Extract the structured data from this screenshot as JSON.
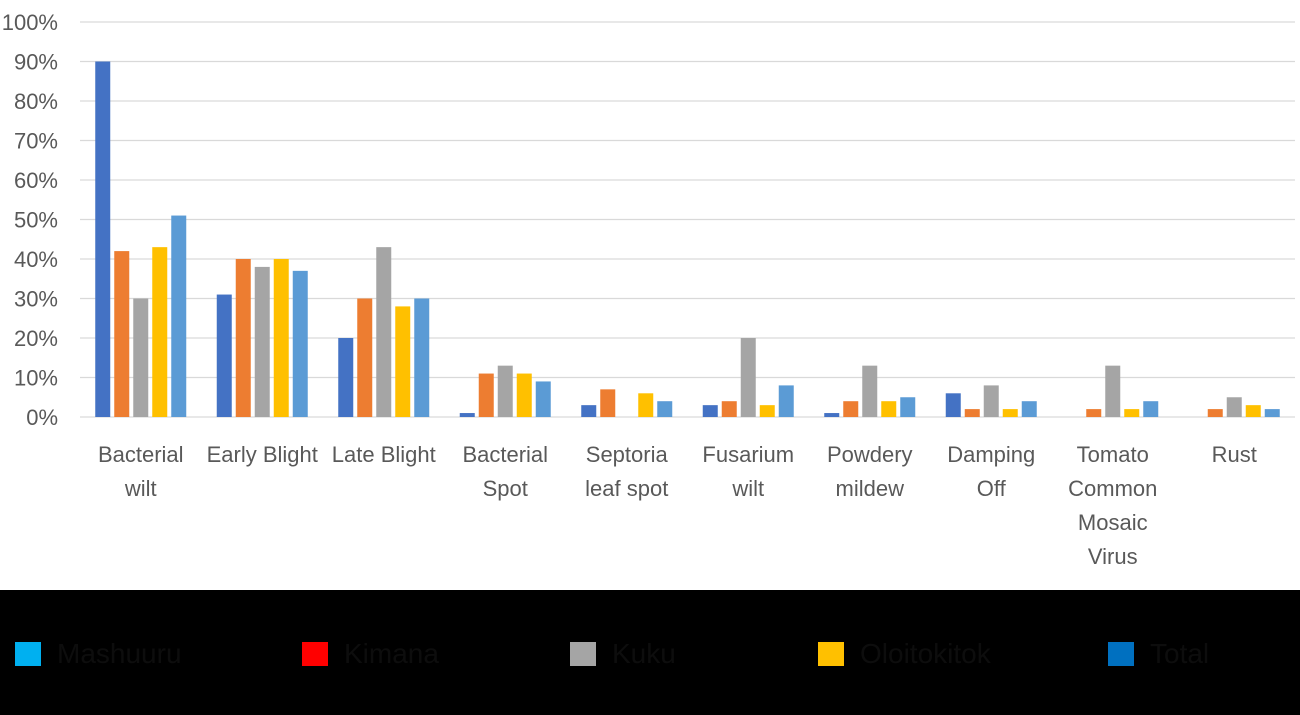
{
  "chart_data": {
    "type": "bar",
    "categories": [
      [
        "Bacterial",
        "wilt"
      ],
      [
        "Early Blight"
      ],
      [
        "Late Blight"
      ],
      [
        "Bacterial",
        "Spot"
      ],
      [
        "Septoria",
        "leaf spot"
      ],
      [
        "Fusarium",
        "wilt"
      ],
      [
        "Powdery",
        "mildew"
      ],
      [
        "Damping",
        "Off"
      ],
      [
        "Tomato",
        "Common",
        "Mosaic",
        "Virus"
      ],
      [
        "Rust"
      ]
    ],
    "series": [
      {
        "name": "Mashuuru",
        "color": "#4472C4",
        "values": [
          90,
          31,
          20,
          1,
          3,
          3,
          1,
          6,
          0,
          0
        ]
      },
      {
        "name": "Kimana",
        "color": "#ED7D31",
        "values": [
          42,
          40,
          30,
          11,
          7,
          4,
          4,
          2,
          2,
          2
        ]
      },
      {
        "name": "Kuku",
        "color": "#A5A5A5",
        "values": [
          30,
          38,
          43,
          13,
          0,
          20,
          13,
          8,
          13,
          5
        ]
      },
      {
        "name": "Oloitokitok",
        "color": "#FFC000",
        "values": [
          43,
          40,
          28,
          11,
          6,
          3,
          4,
          2,
          2,
          3
        ]
      },
      {
        "name": "Total",
        "color": "#5B9BD5",
        "values": [
          51,
          37,
          30,
          9,
          4,
          8,
          5,
          4,
          4,
          2
        ]
      }
    ],
    "ylim": [
      0,
      100
    ],
    "yticks": [
      "0%",
      "10%",
      "20%",
      "30%",
      "40%",
      "50%",
      "60%",
      "70%",
      "80%",
      "90%",
      "100%"
    ],
    "grid": true,
    "legend": "bottom",
    "legend_swatch_colors": [
      "#00B0F0",
      "#FF0000",
      "#A5A5A5",
      "#FFC000",
      "#0070C0"
    ]
  }
}
